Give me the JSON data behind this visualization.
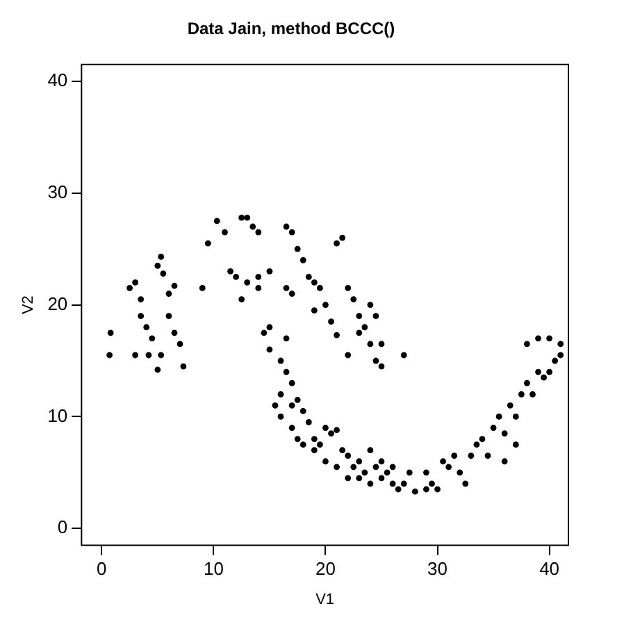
{
  "chart_data": {
    "type": "scatter",
    "title": "Data Jain, method BCCC()",
    "xlabel": "V1",
    "ylabel": "V2",
    "xlim": [
      -1.8,
      41.7
    ],
    "ylim": [
      -1.5,
      41.5
    ],
    "xticks": [
      0,
      10,
      20,
      30,
      40
    ],
    "yticks": [
      0,
      10,
      20,
      30,
      40
    ],
    "grid": false,
    "legend": false,
    "marker": "circle",
    "series": [
      {
        "color": "#000000",
        "x": [
          0.8,
          0.7,
          2.5,
          3,
          3.5,
          3.5,
          4,
          4.5,
          4.2,
          5,
          5,
          5.3,
          5.5,
          6,
          6,
          6.5,
          7.3,
          7,
          6.5,
          5.3,
          3,
          9,
          9.5,
          10.3,
          11,
          11.5,
          12.5,
          13,
          13.5,
          14,
          12,
          13,
          14,
          14,
          15,
          12.5,
          16.5,
          17,
          17.5,
          18,
          16.5,
          17,
          18.5,
          19,
          19.5,
          20,
          21,
          21.5,
          19,
          20.5,
          22,
          22.5,
          23,
          23.5,
          24,
          22,
          23,
          24,
          24.5,
          25,
          25,
          27,
          21,
          24.5,
          15,
          16,
          16.5,
          17,
          15.5,
          16,
          17,
          17.5,
          18,
          18.5,
          19,
          19.5,
          20,
          20.5,
          21,
          21.5,
          22,
          22.5,
          23,
          23.5,
          24,
          24.5,
          25,
          25.5,
          26,
          26.5,
          27,
          28,
          29,
          29.5,
          30,
          31,
          31.5,
          32,
          33,
          33.5,
          34,
          34.5,
          35,
          35.5,
          36,
          36.5,
          37,
          37.5,
          38,
          38.5,
          39,
          38,
          39,
          40,
          41,
          40.5,
          39.5,
          40,
          41,
          37,
          36,
          20,
          19,
          18,
          21,
          22,
          17,
          16.5,
          15,
          14.5,
          16,
          17.5,
          24,
          25,
          23,
          26,
          27.5,
          32.5,
          29,
          30.5
        ],
        "values": [
          17.5,
          15.5,
          21.5,
          22,
          20.5,
          19,
          18,
          17,
          15.5,
          14.2,
          23.5,
          24.3,
          22.8,
          21,
          19,
          17.5,
          14.5,
          16.5,
          21.7,
          15.5,
          15.5,
          21.5,
          25.5,
          27.5,
          26.5,
          23,
          27.8,
          27.8,
          27,
          26.5,
          22.5,
          22,
          22.5,
          21.5,
          23,
          20.5,
          27,
          26.5,
          25,
          24,
          21.5,
          21,
          22.5,
          22,
          21.5,
          20,
          25.5,
          26,
          19.5,
          18.5,
          21.5,
          20.5,
          19,
          18,
          16.5,
          15.5,
          17.5,
          20,
          15,
          14.5,
          16.5,
          15.5,
          17.3,
          19,
          16,
          15,
          14,
          13,
          11,
          10,
          9,
          8,
          10.5,
          9.5,
          8,
          7.5,
          9,
          8.5,
          8.8,
          7,
          6.5,
          5.5,
          4.5,
          5,
          4,
          5.5,
          4.5,
          5,
          4,
          3.5,
          4,
          3.3,
          5,
          4,
          3.5,
          5.5,
          6.5,
          5,
          6.5,
          7.5,
          8,
          6.5,
          9,
          10,
          8.5,
          11,
          10,
          12,
          13,
          12,
          14,
          16.5,
          17,
          17,
          16.5,
          15,
          13.5,
          14,
          15.5,
          7.5,
          6,
          6,
          7,
          7.5,
          5.5,
          4.5,
          11,
          17,
          18,
          17.5,
          12,
          11.5,
          7,
          6,
          6,
          5.5,
          5,
          4,
          3.5,
          6
        ]
      }
    ]
  }
}
